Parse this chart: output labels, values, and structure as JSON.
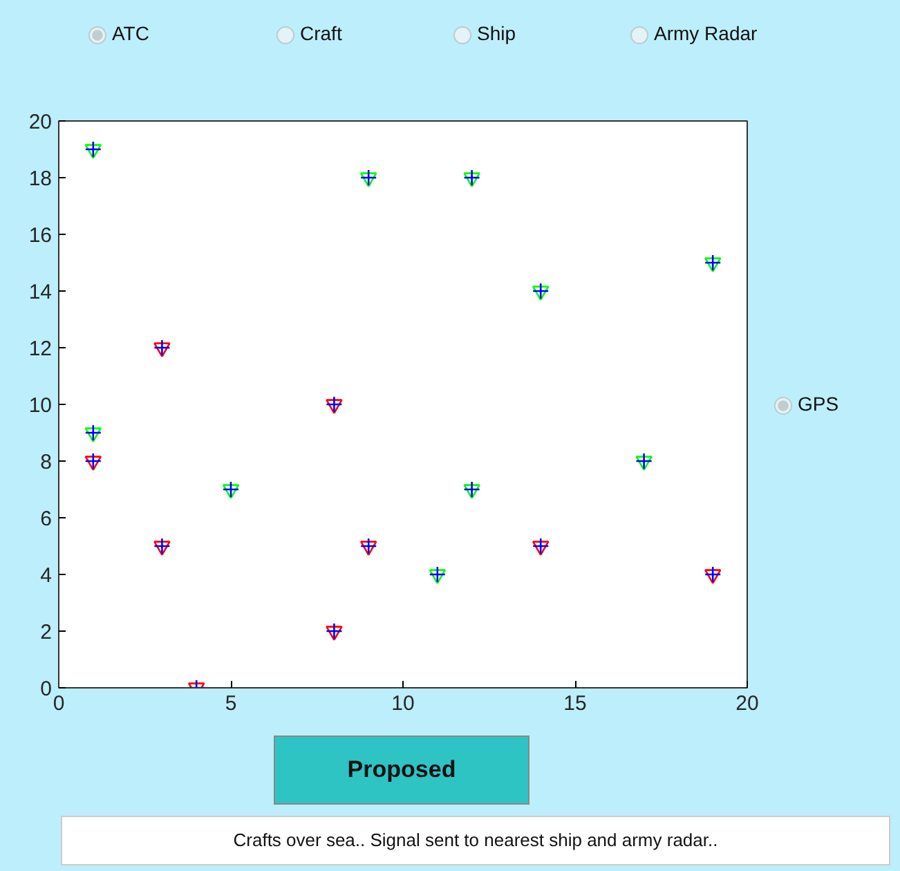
{
  "chart_data": {
    "type": "scatter",
    "xlim": [
      0,
      20
    ],
    "ylim": [
      0,
      20
    ],
    "xticks": [
      0,
      5,
      10,
      15,
      20
    ],
    "yticks": [
      0,
      2,
      4,
      6,
      8,
      10,
      12,
      14,
      16,
      18,
      20
    ],
    "grid": false,
    "series": [
      {
        "color": "#00ff00",
        "marker": "triangle",
        "x": [
          1,
          9,
          12,
          14,
          19,
          1,
          5,
          12,
          17,
          11
        ],
        "values": [
          19,
          18,
          18,
          14,
          15,
          9,
          7,
          7,
          8,
          4
        ]
      },
      {
        "color": "#ff0000",
        "marker": "triangle",
        "x": [
          1,
          3,
          8,
          3,
          9,
          8,
          4,
          14,
          19
        ],
        "values": [
          8,
          12,
          10,
          5,
          5,
          2,
          0,
          5,
          4
        ]
      },
      {
        "color": "#0000ff",
        "marker": "cross",
        "x": [
          1,
          9,
          12,
          14,
          19,
          1,
          5,
          12,
          17,
          11,
          1,
          3,
          8,
          3,
          9,
          8,
          4,
          14,
          19
        ],
        "values": [
          19,
          18,
          18,
          14,
          15,
          9,
          7,
          7,
          8,
          4,
          8,
          12,
          10,
          5,
          5,
          2,
          0,
          5,
          4
        ]
      }
    ],
    "annotations": [
      "ATC",
      "Craft",
      "Ship",
      "Army Radar",
      "GPS",
      "Proposed",
      "Crafts over sea.. Signal sent to nearest ship and army radar.."
    ]
  }
}
